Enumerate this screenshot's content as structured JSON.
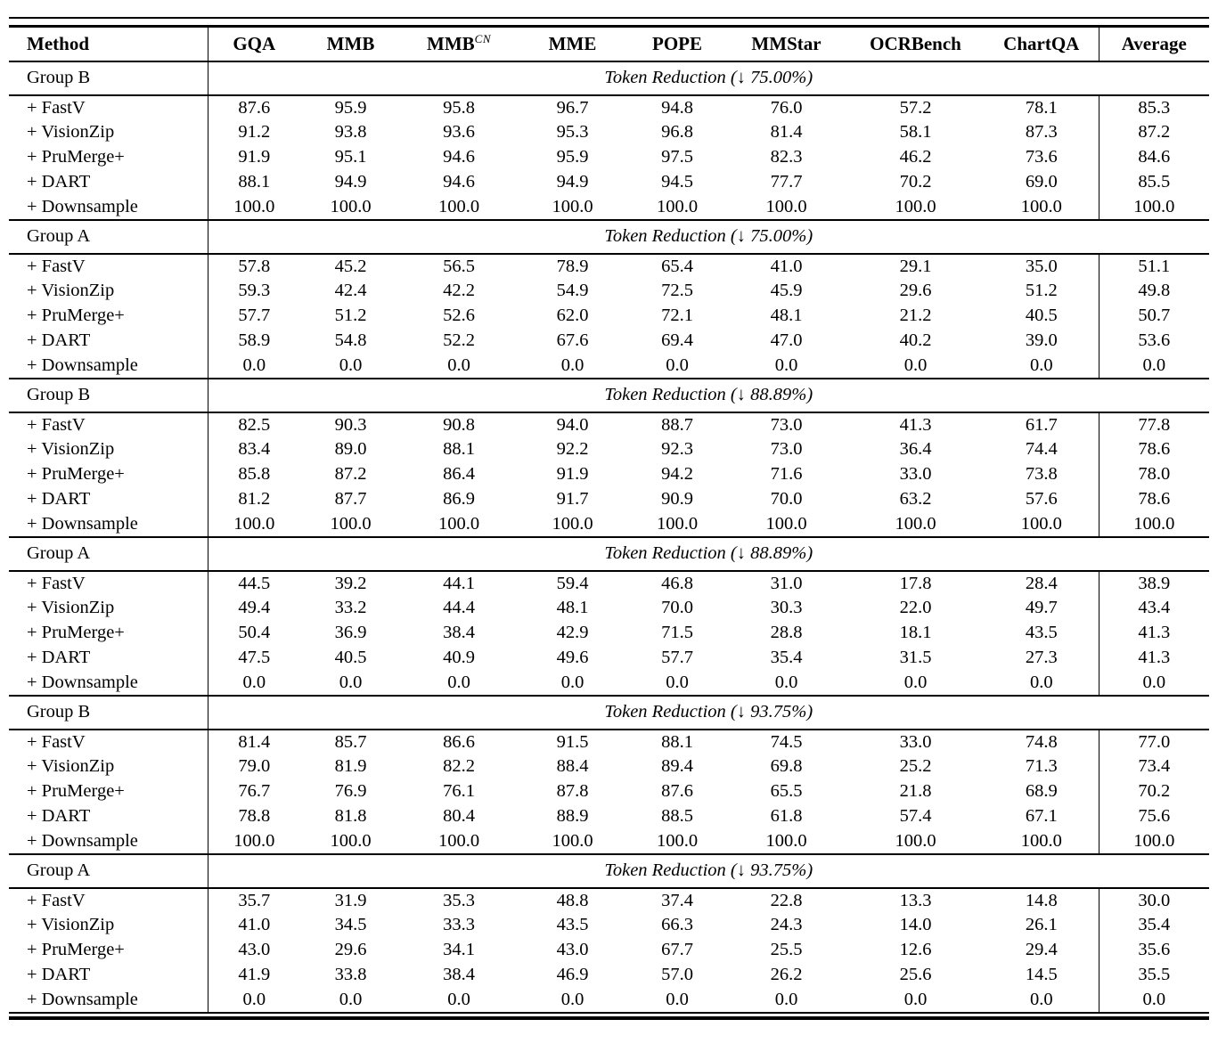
{
  "colors": {
    "text": "#000000",
    "background": "#ffffff",
    "rule": "#000000"
  },
  "table": {
    "columns": [
      {
        "label": "Method"
      },
      {
        "label": "GQA"
      },
      {
        "label": "MMB"
      },
      {
        "label": "MMB",
        "sup": "CN"
      },
      {
        "label": "MME"
      },
      {
        "label": "POPE"
      },
      {
        "label": "MMStar"
      },
      {
        "label": "OCRBench"
      },
      {
        "label": "ChartQA"
      },
      {
        "label": "Average"
      }
    ],
    "sections": [
      {
        "group": "Group B",
        "span_label": "Token Reduction (↓ 75.00%)",
        "rows": [
          {
            "method": "+ FastV",
            "values": [
              "87.6",
              "95.9",
              "95.8",
              "96.7",
              "94.8",
              "76.0",
              "57.2",
              "78.1",
              "85.3"
            ]
          },
          {
            "method": "+ VisionZip",
            "values": [
              "91.2",
              "93.8",
              "93.6",
              "95.3",
              "96.8",
              "81.4",
              "58.1",
              "87.3",
              "87.2"
            ]
          },
          {
            "method": "+ PruMerge+",
            "values": [
              "91.9",
              "95.1",
              "94.6",
              "95.9",
              "97.5",
              "82.3",
              "46.2",
              "73.6",
              "84.6"
            ]
          },
          {
            "method": "+ DART",
            "values": [
              "88.1",
              "94.9",
              "94.6",
              "94.9",
              "94.5",
              "77.7",
              "70.2",
              "69.0",
              "85.5"
            ]
          },
          {
            "method": "+ Downsample",
            "values": [
              "100.0",
              "100.0",
              "100.0",
              "100.0",
              "100.0",
              "100.0",
              "100.0",
              "100.0",
              "100.0"
            ]
          }
        ]
      },
      {
        "group": "Group A",
        "span_label": "Token Reduction (↓ 75.00%)",
        "rows": [
          {
            "method": "+ FastV",
            "values": [
              "57.8",
              "45.2",
              "56.5",
              "78.9",
              "65.4",
              "41.0",
              "29.1",
              "35.0",
              "51.1"
            ]
          },
          {
            "method": "+ VisionZip",
            "values": [
              "59.3",
              "42.4",
              "42.2",
              "54.9",
              "72.5",
              "45.9",
              "29.6",
              "51.2",
              "49.8"
            ]
          },
          {
            "method": "+ PruMerge+",
            "values": [
              "57.7",
              "51.2",
              "52.6",
              "62.0",
              "72.1",
              "48.1",
              "21.2",
              "40.5",
              "50.7"
            ]
          },
          {
            "method": "+ DART",
            "values": [
              "58.9",
              "54.8",
              "52.2",
              "67.6",
              "69.4",
              "47.0",
              "40.2",
              "39.0",
              "53.6"
            ]
          },
          {
            "method": "+ Downsample",
            "values": [
              "0.0",
              "0.0",
              "0.0",
              "0.0",
              "0.0",
              "0.0",
              "0.0",
              "0.0",
              "0.0"
            ]
          }
        ]
      },
      {
        "group": "Group B",
        "span_label": "Token Reduction (↓ 88.89%)",
        "rows": [
          {
            "method": "+ FastV",
            "values": [
              "82.5",
              "90.3",
              "90.8",
              "94.0",
              "88.7",
              "73.0",
              "41.3",
              "61.7",
              "77.8"
            ]
          },
          {
            "method": "+ VisionZip",
            "values": [
              "83.4",
              "89.0",
              "88.1",
              "92.2",
              "92.3",
              "73.0",
              "36.4",
              "74.4",
              "78.6"
            ]
          },
          {
            "method": "+ PruMerge+",
            "values": [
              "85.8",
              "87.2",
              "86.4",
              "91.9",
              "94.2",
              "71.6",
              "33.0",
              "73.8",
              "78.0"
            ]
          },
          {
            "method": "+ DART",
            "values": [
              "81.2",
              "87.7",
              "86.9",
              "91.7",
              "90.9",
              "70.0",
              "63.2",
              "57.6",
              "78.6"
            ]
          },
          {
            "method": "+ Downsample",
            "values": [
              "100.0",
              "100.0",
              "100.0",
              "100.0",
              "100.0",
              "100.0",
              "100.0",
              "100.0",
              "100.0"
            ]
          }
        ]
      },
      {
        "group": "Group A",
        "span_label": "Token Reduction (↓ 88.89%)",
        "rows": [
          {
            "method": "+ FastV",
            "values": [
              "44.5",
              "39.2",
              "44.1",
              "59.4",
              "46.8",
              "31.0",
              "17.8",
              "28.4",
              "38.9"
            ]
          },
          {
            "method": "+ VisionZip",
            "values": [
              "49.4",
              "33.2",
              "44.4",
              "48.1",
              "70.0",
              "30.3",
              "22.0",
              "49.7",
              "43.4"
            ]
          },
          {
            "method": "+ PruMerge+",
            "values": [
              "50.4",
              "36.9",
              "38.4",
              "42.9",
              "71.5",
              "28.8",
              "18.1",
              "43.5",
              "41.3"
            ]
          },
          {
            "method": "+ DART",
            "values": [
              "47.5",
              "40.5",
              "40.9",
              "49.6",
              "57.7",
              "35.4",
              "31.5",
              "27.3",
              "41.3"
            ]
          },
          {
            "method": "+ Downsample",
            "values": [
              "0.0",
              "0.0",
              "0.0",
              "0.0",
              "0.0",
              "0.0",
              "0.0",
              "0.0",
              "0.0"
            ]
          }
        ]
      },
      {
        "group": "Group B",
        "span_label": "Token Reduction (↓ 93.75%)",
        "rows": [
          {
            "method": "+ FastV",
            "values": [
              "81.4",
              "85.7",
              "86.6",
              "91.5",
              "88.1",
              "74.5",
              "33.0",
              "74.8",
              "77.0"
            ]
          },
          {
            "method": "+ VisionZip",
            "values": [
              "79.0",
              "81.9",
              "82.2",
              "88.4",
              "89.4",
              "69.8",
              "25.2",
              "71.3",
              "73.4"
            ]
          },
          {
            "method": "+ PruMerge+",
            "values": [
              "76.7",
              "76.9",
              "76.1",
              "87.8",
              "87.6",
              "65.5",
              "21.8",
              "68.9",
              "70.2"
            ]
          },
          {
            "method": "+ DART",
            "values": [
              "78.8",
              "81.8",
              "80.4",
              "88.9",
              "88.5",
              "61.8",
              "57.4",
              "67.1",
              "75.6"
            ]
          },
          {
            "method": "+ Downsample",
            "values": [
              "100.0",
              "100.0",
              "100.0",
              "100.0",
              "100.0",
              "100.0",
              "100.0",
              "100.0",
              "100.0"
            ]
          }
        ]
      },
      {
        "group": "Group A",
        "span_label": "Token Reduction (↓ 93.75%)",
        "rows": [
          {
            "method": "+ FastV",
            "values": [
              "35.7",
              "31.9",
              "35.3",
              "48.8",
              "37.4",
              "22.8",
              "13.3",
              "14.8",
              "30.0"
            ]
          },
          {
            "method": "+ VisionZip",
            "values": [
              "41.0",
              "34.5",
              "33.3",
              "43.5",
              "66.3",
              "24.3",
              "14.0",
              "26.1",
              "35.4"
            ]
          },
          {
            "method": "+ PruMerge+",
            "values": [
              "43.0",
              "29.6",
              "34.1",
              "43.0",
              "67.7",
              "25.5",
              "12.6",
              "29.4",
              "35.6"
            ]
          },
          {
            "method": "+ DART",
            "values": [
              "41.9",
              "33.8",
              "38.4",
              "46.9",
              "57.0",
              "26.2",
              "25.6",
              "14.5",
              "35.5"
            ]
          },
          {
            "method": "+ Downsample",
            "values": [
              "0.0",
              "0.0",
              "0.0",
              "0.0",
              "0.0",
              "0.0",
              "0.0",
              "0.0",
              "0.0"
            ]
          }
        ]
      }
    ]
  }
}
